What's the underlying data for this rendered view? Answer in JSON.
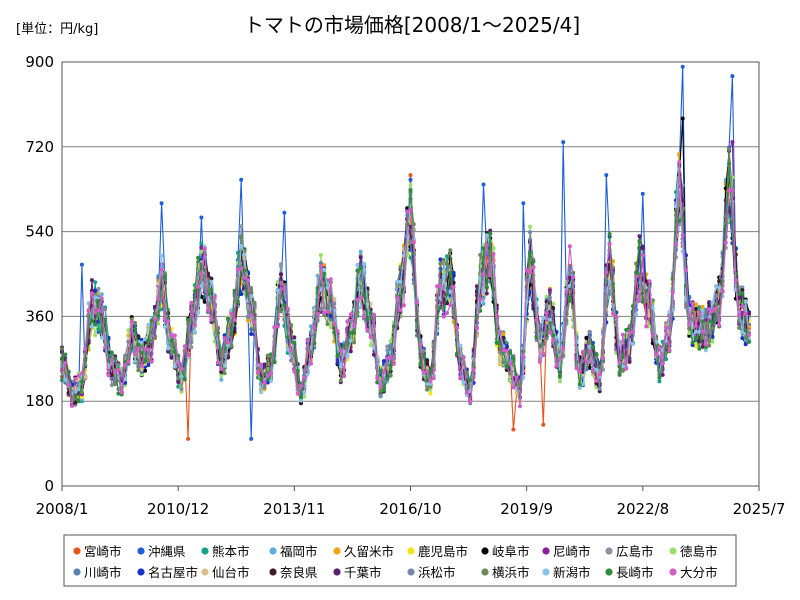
{
  "chart_data": {
    "type": "line",
    "title": "トマトの市場価格[2008/1～2025/4]",
    "unit_label": "[単位：円/kg]",
    "ylim": [
      0,
      900
    ],
    "y_ticks": [
      0,
      180,
      360,
      540,
      720,
      900
    ],
    "xlim": [
      "2008-01",
      "2025-07"
    ],
    "x_ticks": [
      "2008/1",
      "2010/12",
      "2013/11",
      "2016/10",
      "2019/9",
      "2022/8",
      "2025/7"
    ],
    "grid": "horizontal",
    "legend_position": "bottom",
    "series": [
      {
        "name": "宮崎市",
        "color": "#e8541e"
      },
      {
        "name": "沖縄県",
        "color": "#1f5fd6"
      },
      {
        "name": "熊本市",
        "color": "#16a085"
      },
      {
        "name": "福岡市",
        "color": "#5dade2"
      },
      {
        "name": "久留米市",
        "color": "#f0a30a"
      },
      {
        "name": "鹿児島市",
        "color": "#f5e31b"
      },
      {
        "name": "岐阜市",
        "color": "#000000"
      },
      {
        "name": "尼崎市",
        "color": "#8e1c9e"
      },
      {
        "name": "広島市",
        "color": "#8a93a3"
      },
      {
        "name": "徳島市",
        "color": "#9be06b"
      },
      {
        "name": "川崎市",
        "color": "#5a7fb0"
      },
      {
        "name": "名古屋市",
        "color": "#1533c9"
      },
      {
        "name": "仙台市",
        "color": "#d9bf8c"
      },
      {
        "name": "奈良県",
        "color": "#3b1d2e"
      },
      {
        "name": "千葉市",
        "color": "#5c1f6e"
      },
      {
        "name": "浜松市",
        "color": "#7a86a6"
      },
      {
        "name": "横浜市",
        "color": "#6b8a5a"
      },
      {
        "name": "新潟市",
        "color": "#87c4e6"
      },
      {
        "name": "長崎市",
        "color": "#2e8b3d"
      },
      {
        "name": "大分市",
        "color": "#d45cc8"
      }
    ],
    "anchors": [
      {
        "d": "2008-01",
        "v": 260
      },
      {
        "d": "2008-04",
        "v": 200
      },
      {
        "d": "2008-07",
        "v": 210
      },
      {
        "d": "2008-10",
        "v": 380
      },
      {
        "d": "2009-01",
        "v": 360
      },
      {
        "d": "2009-04",
        "v": 250
      },
      {
        "d": "2009-07",
        "v": 220
      },
      {
        "d": "2009-10",
        "v": 320
      },
      {
        "d": "2010-01",
        "v": 270
      },
      {
        "d": "2010-04",
        "v": 310
      },
      {
        "d": "2010-07",
        "v": 430
      },
      {
        "d": "2010-10",
        "v": 300
      },
      {
        "d": "2011-01",
        "v": 230
      },
      {
        "d": "2011-04",
        "v": 340
      },
      {
        "d": "2011-07",
        "v": 460
      },
      {
        "d": "2011-10",
        "v": 390
      },
      {
        "d": "2012-01",
        "v": 260
      },
      {
        "d": "2012-04",
        "v": 330
      },
      {
        "d": "2012-07",
        "v": 480
      },
      {
        "d": "2012-10",
        "v": 380
      },
      {
        "d": "2013-01",
        "v": 230
      },
      {
        "d": "2013-04",
        "v": 250
      },
      {
        "d": "2013-07",
        "v": 420
      },
      {
        "d": "2013-10",
        "v": 300
      },
      {
        "d": "2014-01",
        "v": 200
      },
      {
        "d": "2014-04",
        "v": 300
      },
      {
        "d": "2014-07",
        "v": 430
      },
      {
        "d": "2014-10",
        "v": 390
      },
      {
        "d": "2015-01",
        "v": 260
      },
      {
        "d": "2015-04",
        "v": 320
      },
      {
        "d": "2015-07",
        "v": 440
      },
      {
        "d": "2015-10",
        "v": 350
      },
      {
        "d": "2016-01",
        "v": 220
      },
      {
        "d": "2016-04",
        "v": 270
      },
      {
        "d": "2016-07",
        "v": 420
      },
      {
        "d": "2016-10",
        "v": 560
      },
      {
        "d": "2017-01",
        "v": 280
      },
      {
        "d": "2017-04",
        "v": 220
      },
      {
        "d": "2017-07",
        "v": 420
      },
      {
        "d": "2017-10",
        "v": 440
      },
      {
        "d": "2018-01",
        "v": 260
      },
      {
        "d": "2018-04",
        "v": 200
      },
      {
        "d": "2018-07",
        "v": 430
      },
      {
        "d": "2018-10",
        "v": 490
      },
      {
        "d": "2019-01",
        "v": 290
      },
      {
        "d": "2019-04",
        "v": 260
      },
      {
        "d": "2019-07",
        "v": 200
      },
      {
        "d": "2019-10",
        "v": 480
      },
      {
        "d": "2020-01",
        "v": 300
      },
      {
        "d": "2020-04",
        "v": 380
      },
      {
        "d": "2020-07",
        "v": 260
      },
      {
        "d": "2020-10",
        "v": 450
      },
      {
        "d": "2021-01",
        "v": 240
      },
      {
        "d": "2021-04",
        "v": 290
      },
      {
        "d": "2021-07",
        "v": 230
      },
      {
        "d": "2021-10",
        "v": 470
      },
      {
        "d": "2022-01",
        "v": 270
      },
      {
        "d": "2022-04",
        "v": 300
      },
      {
        "d": "2022-07",
        "v": 460
      },
      {
        "d": "2022-10",
        "v": 380
      },
      {
        "d": "2023-01",
        "v": 260
      },
      {
        "d": "2023-04",
        "v": 330
      },
      {
        "d": "2023-07",
        "v": 630
      },
      {
        "d": "2023-10",
        "v": 360
      },
      {
        "d": "2024-01",
        "v": 330
      },
      {
        "d": "2024-04",
        "v": 340
      },
      {
        "d": "2024-07",
        "v": 390
      },
      {
        "d": "2024-10",
        "v": 650
      },
      {
        "d": "2025-01",
        "v": 380
      },
      {
        "d": "2025-04",
        "v": 340
      }
    ],
    "highlights": [
      {
        "series": 1,
        "d": "2008-07",
        "v": 470
      },
      {
        "series": 1,
        "d": "2010-07",
        "v": 600
      },
      {
        "series": 1,
        "d": "2011-07",
        "v": 570
      },
      {
        "series": 1,
        "d": "2012-07",
        "v": 650
      },
      {
        "series": 1,
        "d": "2013-08",
        "v": 580
      },
      {
        "series": 1,
        "d": "2016-10",
        "v": 650
      },
      {
        "series": 0,
        "d": "2016-10",
        "v": 660
      },
      {
        "series": 1,
        "d": "2018-08",
        "v": 640
      },
      {
        "series": 1,
        "d": "2019-08",
        "v": 600
      },
      {
        "series": 1,
        "d": "2020-08",
        "v": 730
      },
      {
        "series": 1,
        "d": "2021-09",
        "v": 660
      },
      {
        "series": 1,
        "d": "2022-08",
        "v": 620
      },
      {
        "series": 1,
        "d": "2023-08",
        "v": 890
      },
      {
        "series": 6,
        "d": "2023-08",
        "v": 780
      },
      {
        "series": 1,
        "d": "2024-11",
        "v": 870
      },
      {
        "series": 7,
        "d": "2024-11",
        "v": 730
      },
      {
        "series": 1,
        "d": "2012-10",
        "v": 100
      },
      {
        "series": 0,
        "d": "2011-03",
        "v": 100
      },
      {
        "series": 0,
        "d": "2019-05",
        "v": 120
      },
      {
        "series": 0,
        "d": "2020-02",
        "v": 130
      }
    ]
  }
}
